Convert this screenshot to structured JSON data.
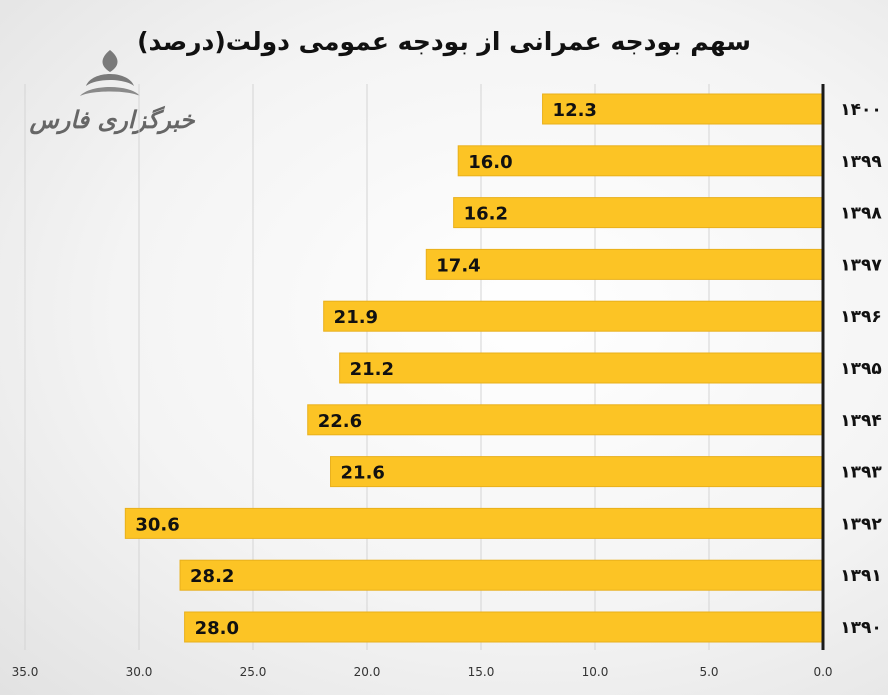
{
  "logo": {
    "text": "خبرگزاری فارس"
  },
  "chart_data": {
    "type": "bar",
    "orientation": "horizontal",
    "title": "سهم بودجه عمرانی از بودجه عمومی دولت(درصد)",
    "categories": [
      "۱۴۰۰",
      "۱۳۹۹",
      "۱۳۹۸",
      "۱۳۹۷",
      "۱۳۹۶",
      "۱۳۹۵",
      "۱۳۹۴",
      "۱۳۹۳",
      "۱۳۹۲",
      "۱۳۹۱",
      "۱۳۹۰"
    ],
    "values": [
      12.3,
      16.0,
      16.2,
      17.4,
      21.9,
      21.2,
      22.6,
      21.6,
      30.6,
      28.2,
      28.0
    ],
    "value_labels": [
      "12.3",
      "16.0",
      "16.2",
      "17.4",
      "21.9",
      "21.2",
      "22.6",
      "21.6",
      "30.6",
      "28.2",
      "28.0"
    ],
    "xlim": [
      0,
      35
    ],
    "x_ticks": [
      0,
      5,
      10,
      15,
      20,
      25,
      30,
      35
    ],
    "x_tick_labels": [
      "0.0",
      "5.0",
      "10.0",
      "15.0",
      "20.0",
      "25.0",
      "30.0",
      "35.0"
    ],
    "x_axis_reversed": true,
    "xlabel": "",
    "ylabel": "",
    "grid": true,
    "legend": "none",
    "bar_color": "#FCC425",
    "bar_stroke_color": "#E9B01C",
    "axis_color": "#1a1a1a",
    "grid_color": "#d4d4d4"
  }
}
